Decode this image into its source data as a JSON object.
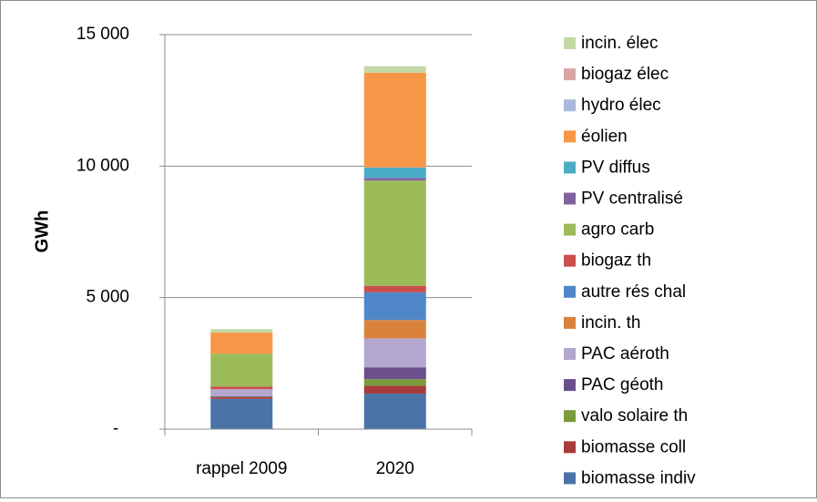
{
  "chart_data": {
    "type": "bar",
    "stacked": true,
    "title": "",
    "xlabel": "",
    "ylabel": "GWh",
    "ylim": [
      0,
      15000
    ],
    "yticks": [
      {
        "value": 0,
        "label": "-"
      },
      {
        "value": 5000,
        "label": "5 000"
      },
      {
        "value": 10000,
        "label": "10 000"
      },
      {
        "value": 15000,
        "label": "15 000"
      }
    ],
    "grid": true,
    "legend_position": "right",
    "categories": [
      "rappel 2009",
      "2020"
    ],
    "series": [
      {
        "name": "biomasse indiv",
        "color": "#4a73a8",
        "values": [
          1150,
          1350
        ]
      },
      {
        "name": "biomasse coll",
        "color": "#a83b3b",
        "values": [
          60,
          300
        ]
      },
      {
        "name": "valo solaire th",
        "color": "#7a9a3c",
        "values": [
          20,
          250
        ]
      },
      {
        "name": "PAC géoth",
        "color": "#6a4f8c",
        "values": [
          20,
          450
        ]
      },
      {
        "name": "PAC aéroth",
        "color": "#b3a6cf",
        "values": [
          270,
          1100
        ]
      },
      {
        "name": "incin. th",
        "color": "#d9823b",
        "values": [
          0,
          700
        ]
      },
      {
        "name": "autre rés chal",
        "color": "#4f87c9",
        "values": [
          0,
          1050
        ]
      },
      {
        "name": "biogaz th",
        "color": "#c9504c",
        "values": [
          100,
          250
        ]
      },
      {
        "name": "agro carb",
        "color": "#9bbb59",
        "values": [
          1250,
          4000
        ]
      },
      {
        "name": "PV centralisé",
        "color": "#8064a2",
        "values": [
          0,
          100
        ]
      },
      {
        "name": "PV diffus",
        "color": "#4bacc6",
        "values": [
          0,
          400
        ]
      },
      {
        "name": "éolien",
        "color": "#f79646",
        "values": [
          800,
          3600
        ]
      },
      {
        "name": "hydro élec",
        "color": "#a9b9dc",
        "values": [
          0,
          0
        ]
      },
      {
        "name": "biogaz élec",
        "color": "#d9a5a4",
        "values": [
          0,
          0
        ]
      },
      {
        "name": "incin. élec",
        "color": "#c4d7a4",
        "values": [
          130,
          250
        ]
      }
    ]
  }
}
